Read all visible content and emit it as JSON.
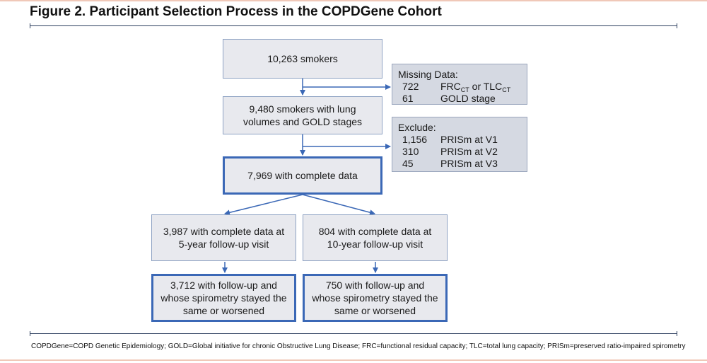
{
  "title": "Figure 2. Participant Selection Process in the COPDGene Cohort",
  "boxes": {
    "smokers": "10,263 smokers",
    "lung_volumes": "9,480 smokers with lung\nvolumes and GOLD stages",
    "complete": "7,969 with complete data",
    "five_year": "3,987 with complete data at\n5-year follow-up visit",
    "ten_year": "804 with complete data at\n10-year follow-up visit",
    "five_year_final": "3,712 with follow-up and\nwhose spirometry stayed the\nsame or worsened",
    "ten_year_final": "750 with follow-up and\nwhose spirometry stayed the\nsame or worsened"
  },
  "missing": {
    "header": "Missing Data:",
    "rows": [
      {
        "n": "722",
        "frc": "FRC",
        "ct1": "CT",
        "or": " or TLC",
        "ct2": "CT"
      },
      {
        "n": "61",
        "text": "GOLD stage"
      }
    ]
  },
  "exclude": {
    "header": "Exclude:",
    "rows": [
      {
        "n": "1,156",
        "text": "PRISm at V1"
      },
      {
        "n": "310",
        "text": "PRISm at V2"
      },
      {
        "n": "45",
        "text": "PRISm at V3"
      }
    ]
  },
  "footnote": "COPDGene=COPD Genetic Epidemiology; GOLD=Global initiative for chronic Obstructive Lung Disease; FRC=functional residual capacity; TLC=total lung capacity; PRISm=preserved ratio-impaired spirometry"
}
